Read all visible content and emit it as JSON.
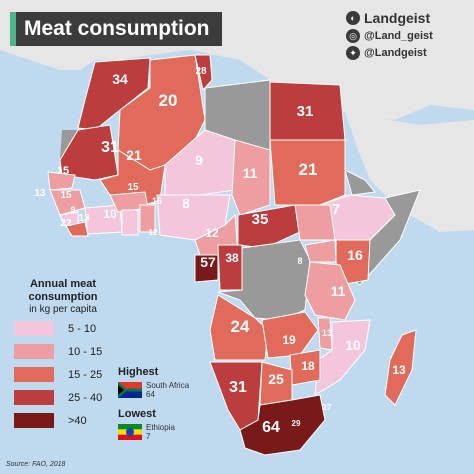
{
  "title": "Meat consumption",
  "brand": {
    "name": "Landgeist",
    "instagram": "@Land_geist",
    "twitter": "@Landgeist"
  },
  "legend": {
    "title_line1": "Annual meat",
    "title_line2": "consumption",
    "subtitle": "in kg per capita",
    "items": [
      {
        "label": "5 - 10",
        "color": "#f3c6dc"
      },
      {
        "label": "10 - 15",
        "color": "#ee9ea0"
      },
      {
        "label": "15 - 25",
        "color": "#e06b5a"
      },
      {
        "label": "25 - 40",
        "color": "#bb3d3e"
      },
      {
        "label": ">40",
        "color": "#7a1a18"
      }
    ]
  },
  "highest": {
    "title": "Highest",
    "country": "South Africa",
    "value": "64"
  },
  "lowest": {
    "title": "Lowest",
    "country": "Ethiopia",
    "value": "7"
  },
  "source": "Source: FAO, 2018",
  "map_values": [
    "34",
    "28",
    "20",
    "31",
    "31",
    "21",
    "9",
    "11",
    "21",
    "15",
    "13",
    "15",
    "9",
    "13",
    "22",
    "10",
    "15",
    "16",
    "8",
    "12",
    "7",
    "16",
    "12",
    "35",
    "57",
    "38",
    "8",
    "11",
    "24",
    "19",
    "13",
    "10",
    "18",
    "31",
    "25",
    "13",
    "27",
    "64",
    "29"
  ]
}
